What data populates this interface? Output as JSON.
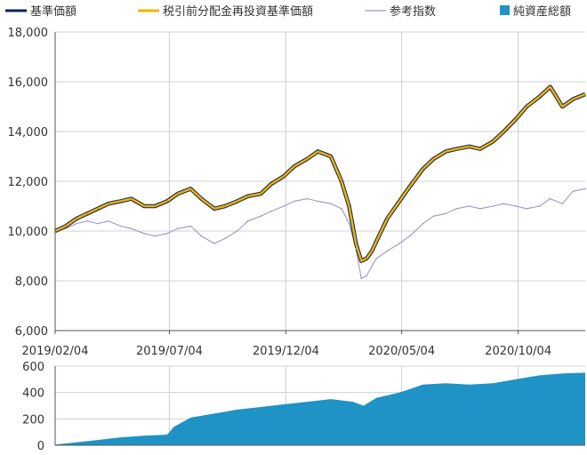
{
  "colors": {
    "nav": "#0b1f5c",
    "nav_reinvest": "#f0b400",
    "reference_index": "#9c97c6",
    "net_assets": "#1f92c6",
    "grid": "#d0d0d0",
    "axis": "#555555"
  },
  "chart_data": [
    {
      "type": "line",
      "title": "",
      "xlabel": "",
      "ylabel": "",
      "x_range": [
        "2019-02-04",
        "2020-12-31"
      ],
      "ylim": [
        6000,
        18000
      ],
      "yticks": [
        "6,000",
        "8,000",
        "10,000",
        "12,000",
        "14,000",
        "16,000",
        "18,000"
      ],
      "xticks": [
        "2019/02/04",
        "2019/07/04",
        "2019/12/04",
        "2020/05/04",
        "2020/10/04"
      ],
      "grid": true,
      "legend_position": "top",
      "x": [
        "2019-02-04",
        "2019-02-18",
        "2019-03-04",
        "2019-03-18",
        "2019-04-01",
        "2019-04-15",
        "2019-05-01",
        "2019-05-15",
        "2019-06-01",
        "2019-06-15",
        "2019-07-01",
        "2019-07-15",
        "2019-08-01",
        "2019-08-15",
        "2019-09-01",
        "2019-09-15",
        "2019-10-01",
        "2019-10-15",
        "2019-11-01",
        "2019-11-15",
        "2019-12-01",
        "2019-12-15",
        "2020-01-01",
        "2020-01-15",
        "2020-02-01",
        "2020-02-15",
        "2020-02-25",
        "2020-03-05",
        "2020-03-12",
        "2020-03-19",
        "2020-03-26",
        "2020-04-01",
        "2020-04-15",
        "2020-05-01",
        "2020-05-15",
        "2020-06-01",
        "2020-06-15",
        "2020-07-01",
        "2020-07-15",
        "2020-08-01",
        "2020-08-15",
        "2020-09-01",
        "2020-09-15",
        "2020-10-01",
        "2020-10-15",
        "2020-11-01",
        "2020-11-15",
        "2020-12-01",
        "2020-12-15",
        "2020-12-31"
      ],
      "series": [
        {
          "name": "基準価額",
          "values": [
            10000,
            10200,
            10500,
            10700,
            10900,
            11100,
            11200,
            11300,
            11000,
            11000,
            11200,
            11500,
            11700,
            11300,
            10900,
            11000,
            11200,
            11400,
            11500,
            11900,
            12200,
            12600,
            12900,
            13200,
            13000,
            12000,
            11000,
            9500,
            8800,
            8900,
            9200,
            9600,
            10500,
            11200,
            11800,
            12500,
            12900,
            13200,
            13300,
            13400,
            13300,
            13600,
            14000,
            14500,
            15000,
            15400,
            15800,
            15000,
            15300,
            15500
          ]
        },
        {
          "name": "税引前分配金再投資基準価額",
          "values": [
            10000,
            10200,
            10500,
            10700,
            10900,
            11100,
            11200,
            11300,
            11000,
            11000,
            11200,
            11500,
            11700,
            11300,
            10900,
            11000,
            11200,
            11400,
            11500,
            11900,
            12200,
            12600,
            12900,
            13200,
            13000,
            12000,
            11000,
            9500,
            8800,
            8900,
            9200,
            9600,
            10500,
            11200,
            11800,
            12500,
            12900,
            13200,
            13300,
            13400,
            13300,
            13600,
            14000,
            14500,
            15000,
            15400,
            15800,
            15000,
            15300,
            15500
          ]
        },
        {
          "name": "参考指数",
          "values": [
            10000,
            10100,
            10300,
            10400,
            10300,
            10400,
            10200,
            10100,
            9900,
            9800,
            9900,
            10100,
            10200,
            9800,
            9500,
            9700,
            10000,
            10400,
            10600,
            10800,
            11000,
            11200,
            11300,
            11200,
            11100,
            10900,
            10300,
            9300,
            8100,
            8200,
            8600,
            8900,
            9200,
            9500,
            9800,
            10300,
            10600,
            10700,
            10900,
            11000,
            10900,
            11000,
            11100,
            11000,
            10900,
            11000,
            11300,
            11100,
            11600,
            11700
          ]
        }
      ]
    },
    {
      "type": "area",
      "title": "",
      "xlabel": "",
      "ylabel": "",
      "ylim": [
        0,
        600
      ],
      "yticks": [
        "0",
        "200",
        "400",
        "600"
      ],
      "grid": true,
      "legend_position": "top-right",
      "x": [
        "2019-02-04",
        "2019-03-01",
        "2019-04-01",
        "2019-05-01",
        "2019-06-01",
        "2019-07-01",
        "2019-07-10",
        "2019-08-01",
        "2019-09-01",
        "2019-10-01",
        "2019-11-01",
        "2019-12-01",
        "2020-01-01",
        "2020-02-01",
        "2020-03-01",
        "2020-03-15",
        "2020-04-01",
        "2020-05-01",
        "2020-06-01",
        "2020-07-01",
        "2020-08-01",
        "2020-09-01",
        "2020-10-01",
        "2020-11-01",
        "2020-12-01",
        "2020-12-31"
      ],
      "series": [
        {
          "name": "純資産総額",
          "values": [
            5,
            20,
            40,
            60,
            72,
            80,
            140,
            210,
            240,
            270,
            290,
            310,
            330,
            350,
            330,
            300,
            360,
            400,
            460,
            470,
            460,
            470,
            500,
            530,
            545,
            550
          ]
        }
      ]
    }
  ]
}
